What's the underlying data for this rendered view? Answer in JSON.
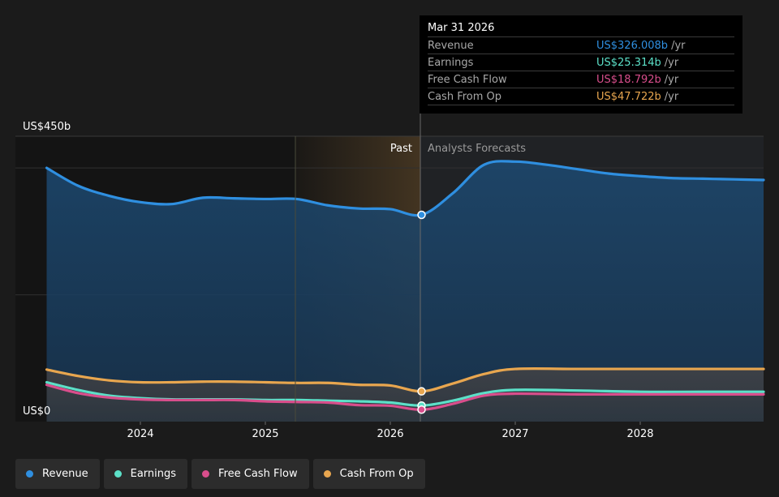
{
  "chart_data": {
    "type": "area",
    "y_axis": {
      "top_label": "US$450b",
      "bottom_label": "US$0",
      "ylim": [
        0,
        450
      ]
    },
    "x_axis": {
      "tick_labels": [
        "2024",
        "2025",
        "2026",
        "2027",
        "2028"
      ]
    },
    "regions": {
      "past_label": "Past",
      "forecast_label": "Analysts Forecasts"
    },
    "series": [
      {
        "name": "Revenue",
        "color": "#2f8fe0",
        "x": [
          2023.25,
          2023.5,
          2023.75,
          2024.0,
          2024.25,
          2024.5,
          2024.75,
          2025.0,
          2025.25,
          2025.5,
          2025.75,
          2026.0,
          2026.25,
          2026.5,
          2026.75,
          2027.0,
          2027.25,
          2027.5,
          2027.75,
          2028.0,
          2028.25,
          2028.5,
          2028.75,
          2029.0
        ],
        "values": [
          400,
          372,
          356,
          346,
          343,
          353,
          352,
          351,
          351,
          341,
          336,
          335,
          326,
          360,
          405,
          410,
          405,
          398,
          391,
          387,
          384,
          383,
          382,
          381
        ]
      },
      {
        "name": "Earnings",
        "color": "#5ce0c8",
        "x": [
          2023.25,
          2023.5,
          2023.75,
          2024.0,
          2024.25,
          2024.5,
          2024.75,
          2025.0,
          2025.25,
          2025.5,
          2025.75,
          2026.0,
          2026.25,
          2026.5,
          2026.75,
          2027.0,
          2027.5,
          2028.0,
          2028.5,
          2029.0
        ],
        "values": [
          62,
          50,
          41,
          37,
          35,
          35,
          35,
          34,
          34,
          33,
          32,
          30,
          25.314,
          33,
          45,
          50,
          49,
          47,
          47,
          47
        ]
      },
      {
        "name": "Free Cash Flow",
        "color": "#d94e8c",
        "x": [
          2023.25,
          2023.5,
          2023.75,
          2024.0,
          2024.25,
          2024.5,
          2024.75,
          2025.0,
          2025.25,
          2025.5,
          2025.75,
          2026.0,
          2026.25,
          2026.5,
          2026.75,
          2027.0,
          2027.5,
          2028.0,
          2028.5,
          2029.0
        ],
        "values": [
          58,
          45,
          38,
          35,
          34,
          34,
          34,
          32,
          31,
          30,
          26,
          25,
          18.792,
          28,
          41,
          44,
          43,
          43,
          43,
          43
        ]
      },
      {
        "name": "Cash From Op",
        "color": "#e8a64f",
        "x": [
          2023.25,
          2023.5,
          2023.75,
          2024.0,
          2024.25,
          2024.5,
          2024.75,
          2025.0,
          2025.25,
          2025.5,
          2025.75,
          2026.0,
          2026.25,
          2026.5,
          2026.75,
          2027.0,
          2027.5,
          2028.0,
          2028.5,
          2029.0
        ],
        "values": [
          82,
          72,
          65,
          62,
          62,
          63,
          63,
          62,
          61,
          61,
          58,
          57,
          47.722,
          60,
          75,
          83,
          83,
          83,
          83,
          83
        ]
      }
    ]
  },
  "tooltip": {
    "date": "Mar 31 2026",
    "unit": "/yr",
    "rows": [
      {
        "name": "Revenue",
        "value": "US$326.008b",
        "color": "#2f8fe0"
      },
      {
        "name": "Earnings",
        "value": "US$25.314b",
        "color": "#5ce0c8"
      },
      {
        "name": "Free Cash Flow",
        "value": "US$18.792b",
        "color": "#d94e8c"
      },
      {
        "name": "Cash From Op",
        "value": "US$47.722b",
        "color": "#e8a64f"
      }
    ]
  },
  "legend": [
    {
      "label": "Revenue",
      "color": "#2f8fe0"
    },
    {
      "label": "Earnings",
      "color": "#5ce0c8"
    },
    {
      "label": "Free Cash Flow",
      "color": "#d94e8c"
    },
    {
      "label": "Cash From Op",
      "color": "#e8a64f"
    }
  ]
}
